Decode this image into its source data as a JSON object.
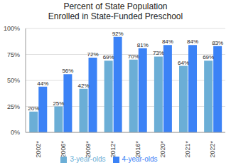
{
  "chart_data": {
    "type": "bar",
    "title": "Percent of State Population\nEnrolled in State-Funded Preschool",
    "categories": [
      "2002*",
      "2006*",
      "2009*",
      "2012*",
      "2016*",
      "2020*",
      "2021*",
      "2022*"
    ],
    "series": [
      {
        "name": "3-year-olds",
        "color": "#6baed6",
        "values": [
          20,
          25,
          42,
          69,
          70,
          73,
          64,
          69
        ],
        "value_labels": [
          "20%",
          "25%",
          "42%",
          "69%",
          "70%",
          "73%",
          "64%",
          "69%"
        ]
      },
      {
        "name": "4-year-olds",
        "color": "#3b82f6",
        "values": [
          44,
          56,
          72,
          92,
          81,
          84,
          84,
          83
        ],
        "value_labels": [
          "44%",
          "56%",
          "72%",
          "92%",
          "81%",
          "84%",
          "84%",
          "83%"
        ]
      }
    ],
    "ylim": [
      0,
      100
    ],
    "yticks": [
      {
        "value": 0,
        "label": "0%"
      },
      {
        "value": 25,
        "label": "25%"
      },
      {
        "value": 50,
        "label": "50%"
      },
      {
        "value": 75,
        "label": "75%"
      },
      {
        "value": 100,
        "label": "100%"
      }
    ],
    "grid": true,
    "legend": "bottom",
    "data_labels": true
  }
}
